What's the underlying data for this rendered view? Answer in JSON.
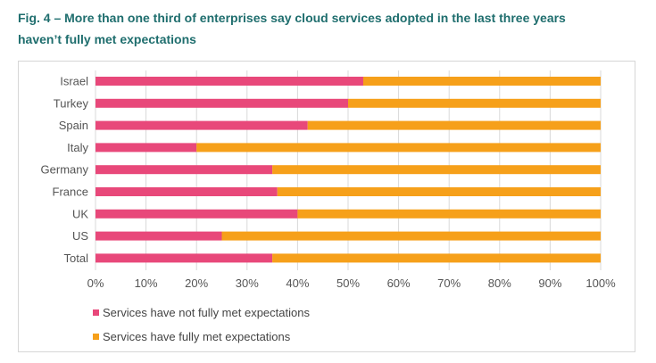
{
  "title_line1": "Fig. 4 – More than one third of enterprises say cloud services adopted in the last three years",
  "title_line2": "haven’t fully met expectations",
  "colors": {
    "not_met": "#e8487a",
    "met": "#f6a01a",
    "title": "#1f6e6e",
    "grid": "#d9d9d9",
    "axis_text": "#555555"
  },
  "chart_data": {
    "type": "bar",
    "orientation": "horizontal",
    "stacked": true,
    "percent": true,
    "categories": [
      "Israel",
      "Turkey",
      "Spain",
      "Italy",
      "Germany",
      "France",
      "UK",
      "US",
      "Total"
    ],
    "series": [
      {
        "name": "Services have not fully met expectations",
        "color": "#e8487a",
        "values": [
          53,
          50,
          42,
          20,
          35,
          36,
          40,
          25,
          35
        ]
      },
      {
        "name": "Services have fully met expectations",
        "color": "#f6a01a",
        "values": [
          47,
          50,
          58,
          80,
          65,
          64,
          60,
          75,
          65
        ]
      }
    ],
    "xlim": [
      0,
      100
    ],
    "xticks": [
      "0%",
      "10%",
      "20%",
      "30%",
      "40%",
      "50%",
      "60%",
      "70%",
      "80%",
      "90%",
      "100%"
    ],
    "xlabel": "",
    "ylabel": "",
    "grid": true,
    "legend_position": "bottom-left"
  }
}
